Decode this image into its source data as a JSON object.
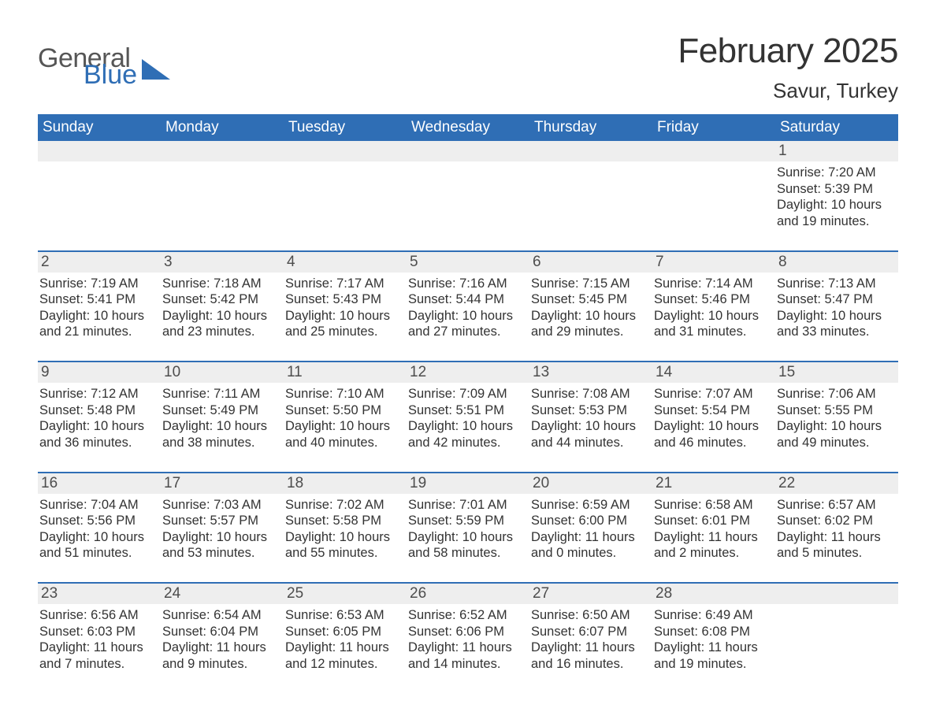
{
  "logo": {
    "word1": "General",
    "word2": "Blue",
    "text_color1": "#565656",
    "text_color2": "#2f6eb5",
    "triangle_color": "#2f6eb5"
  },
  "title": "February 2025",
  "location": "Savur, Turkey",
  "colors": {
    "header_bg": "#2f6eb5",
    "header_text": "#ffffff",
    "strip_bg": "#eeeeee",
    "strip_text": "#4d4d4d",
    "body_text": "#333333",
    "rule": "#2f6eb5",
    "page_bg": "#ffffff"
  },
  "weekdays": [
    "Sunday",
    "Monday",
    "Tuesday",
    "Wednesday",
    "Thursday",
    "Friday",
    "Saturday"
  ],
  "weeks": [
    [
      null,
      null,
      null,
      null,
      null,
      null,
      {
        "n": "1",
        "sunrise": "Sunrise: 7:20 AM",
        "sunset": "Sunset: 5:39 PM",
        "day1": "Daylight: 10 hours",
        "day2": "and 19 minutes."
      }
    ],
    [
      {
        "n": "2",
        "sunrise": "Sunrise: 7:19 AM",
        "sunset": "Sunset: 5:41 PM",
        "day1": "Daylight: 10 hours",
        "day2": "and 21 minutes."
      },
      {
        "n": "3",
        "sunrise": "Sunrise: 7:18 AM",
        "sunset": "Sunset: 5:42 PM",
        "day1": "Daylight: 10 hours",
        "day2": "and 23 minutes."
      },
      {
        "n": "4",
        "sunrise": "Sunrise: 7:17 AM",
        "sunset": "Sunset: 5:43 PM",
        "day1": "Daylight: 10 hours",
        "day2": "and 25 minutes."
      },
      {
        "n": "5",
        "sunrise": "Sunrise: 7:16 AM",
        "sunset": "Sunset: 5:44 PM",
        "day1": "Daylight: 10 hours",
        "day2": "and 27 minutes."
      },
      {
        "n": "6",
        "sunrise": "Sunrise: 7:15 AM",
        "sunset": "Sunset: 5:45 PM",
        "day1": "Daylight: 10 hours",
        "day2": "and 29 minutes."
      },
      {
        "n": "7",
        "sunrise": "Sunrise: 7:14 AM",
        "sunset": "Sunset: 5:46 PM",
        "day1": "Daylight: 10 hours",
        "day2": "and 31 minutes."
      },
      {
        "n": "8",
        "sunrise": "Sunrise: 7:13 AM",
        "sunset": "Sunset: 5:47 PM",
        "day1": "Daylight: 10 hours",
        "day2": "and 33 minutes."
      }
    ],
    [
      {
        "n": "9",
        "sunrise": "Sunrise: 7:12 AM",
        "sunset": "Sunset: 5:48 PM",
        "day1": "Daylight: 10 hours",
        "day2": "and 36 minutes."
      },
      {
        "n": "10",
        "sunrise": "Sunrise: 7:11 AM",
        "sunset": "Sunset: 5:49 PM",
        "day1": "Daylight: 10 hours",
        "day2": "and 38 minutes."
      },
      {
        "n": "11",
        "sunrise": "Sunrise: 7:10 AM",
        "sunset": "Sunset: 5:50 PM",
        "day1": "Daylight: 10 hours",
        "day2": "and 40 minutes."
      },
      {
        "n": "12",
        "sunrise": "Sunrise: 7:09 AM",
        "sunset": "Sunset: 5:51 PM",
        "day1": "Daylight: 10 hours",
        "day2": "and 42 minutes."
      },
      {
        "n": "13",
        "sunrise": "Sunrise: 7:08 AM",
        "sunset": "Sunset: 5:53 PM",
        "day1": "Daylight: 10 hours",
        "day2": "and 44 minutes."
      },
      {
        "n": "14",
        "sunrise": "Sunrise: 7:07 AM",
        "sunset": "Sunset: 5:54 PM",
        "day1": "Daylight: 10 hours",
        "day2": "and 46 minutes."
      },
      {
        "n": "15",
        "sunrise": "Sunrise: 7:06 AM",
        "sunset": "Sunset: 5:55 PM",
        "day1": "Daylight: 10 hours",
        "day2": "and 49 minutes."
      }
    ],
    [
      {
        "n": "16",
        "sunrise": "Sunrise: 7:04 AM",
        "sunset": "Sunset: 5:56 PM",
        "day1": "Daylight: 10 hours",
        "day2": "and 51 minutes."
      },
      {
        "n": "17",
        "sunrise": "Sunrise: 7:03 AM",
        "sunset": "Sunset: 5:57 PM",
        "day1": "Daylight: 10 hours",
        "day2": "and 53 minutes."
      },
      {
        "n": "18",
        "sunrise": "Sunrise: 7:02 AM",
        "sunset": "Sunset: 5:58 PM",
        "day1": "Daylight: 10 hours",
        "day2": "and 55 minutes."
      },
      {
        "n": "19",
        "sunrise": "Sunrise: 7:01 AM",
        "sunset": "Sunset: 5:59 PM",
        "day1": "Daylight: 10 hours",
        "day2": "and 58 minutes."
      },
      {
        "n": "20",
        "sunrise": "Sunrise: 6:59 AM",
        "sunset": "Sunset: 6:00 PM",
        "day1": "Daylight: 11 hours",
        "day2": "and 0 minutes."
      },
      {
        "n": "21",
        "sunrise": "Sunrise: 6:58 AM",
        "sunset": "Sunset: 6:01 PM",
        "day1": "Daylight: 11 hours",
        "day2": "and 2 minutes."
      },
      {
        "n": "22",
        "sunrise": "Sunrise: 6:57 AM",
        "sunset": "Sunset: 6:02 PM",
        "day1": "Daylight: 11 hours",
        "day2": "and 5 minutes."
      }
    ],
    [
      {
        "n": "23",
        "sunrise": "Sunrise: 6:56 AM",
        "sunset": "Sunset: 6:03 PM",
        "day1": "Daylight: 11 hours",
        "day2": "and 7 minutes."
      },
      {
        "n": "24",
        "sunrise": "Sunrise: 6:54 AM",
        "sunset": "Sunset: 6:04 PM",
        "day1": "Daylight: 11 hours",
        "day2": "and 9 minutes."
      },
      {
        "n": "25",
        "sunrise": "Sunrise: 6:53 AM",
        "sunset": "Sunset: 6:05 PM",
        "day1": "Daylight: 11 hours",
        "day2": "and 12 minutes."
      },
      {
        "n": "26",
        "sunrise": "Sunrise: 6:52 AM",
        "sunset": "Sunset: 6:06 PM",
        "day1": "Daylight: 11 hours",
        "day2": "and 14 minutes."
      },
      {
        "n": "27",
        "sunrise": "Sunrise: 6:50 AM",
        "sunset": "Sunset: 6:07 PM",
        "day1": "Daylight: 11 hours",
        "day2": "and 16 minutes."
      },
      {
        "n": "28",
        "sunrise": "Sunrise: 6:49 AM",
        "sunset": "Sunset: 6:08 PM",
        "day1": "Daylight: 11 hours",
        "day2": "and 19 minutes."
      },
      null
    ]
  ]
}
